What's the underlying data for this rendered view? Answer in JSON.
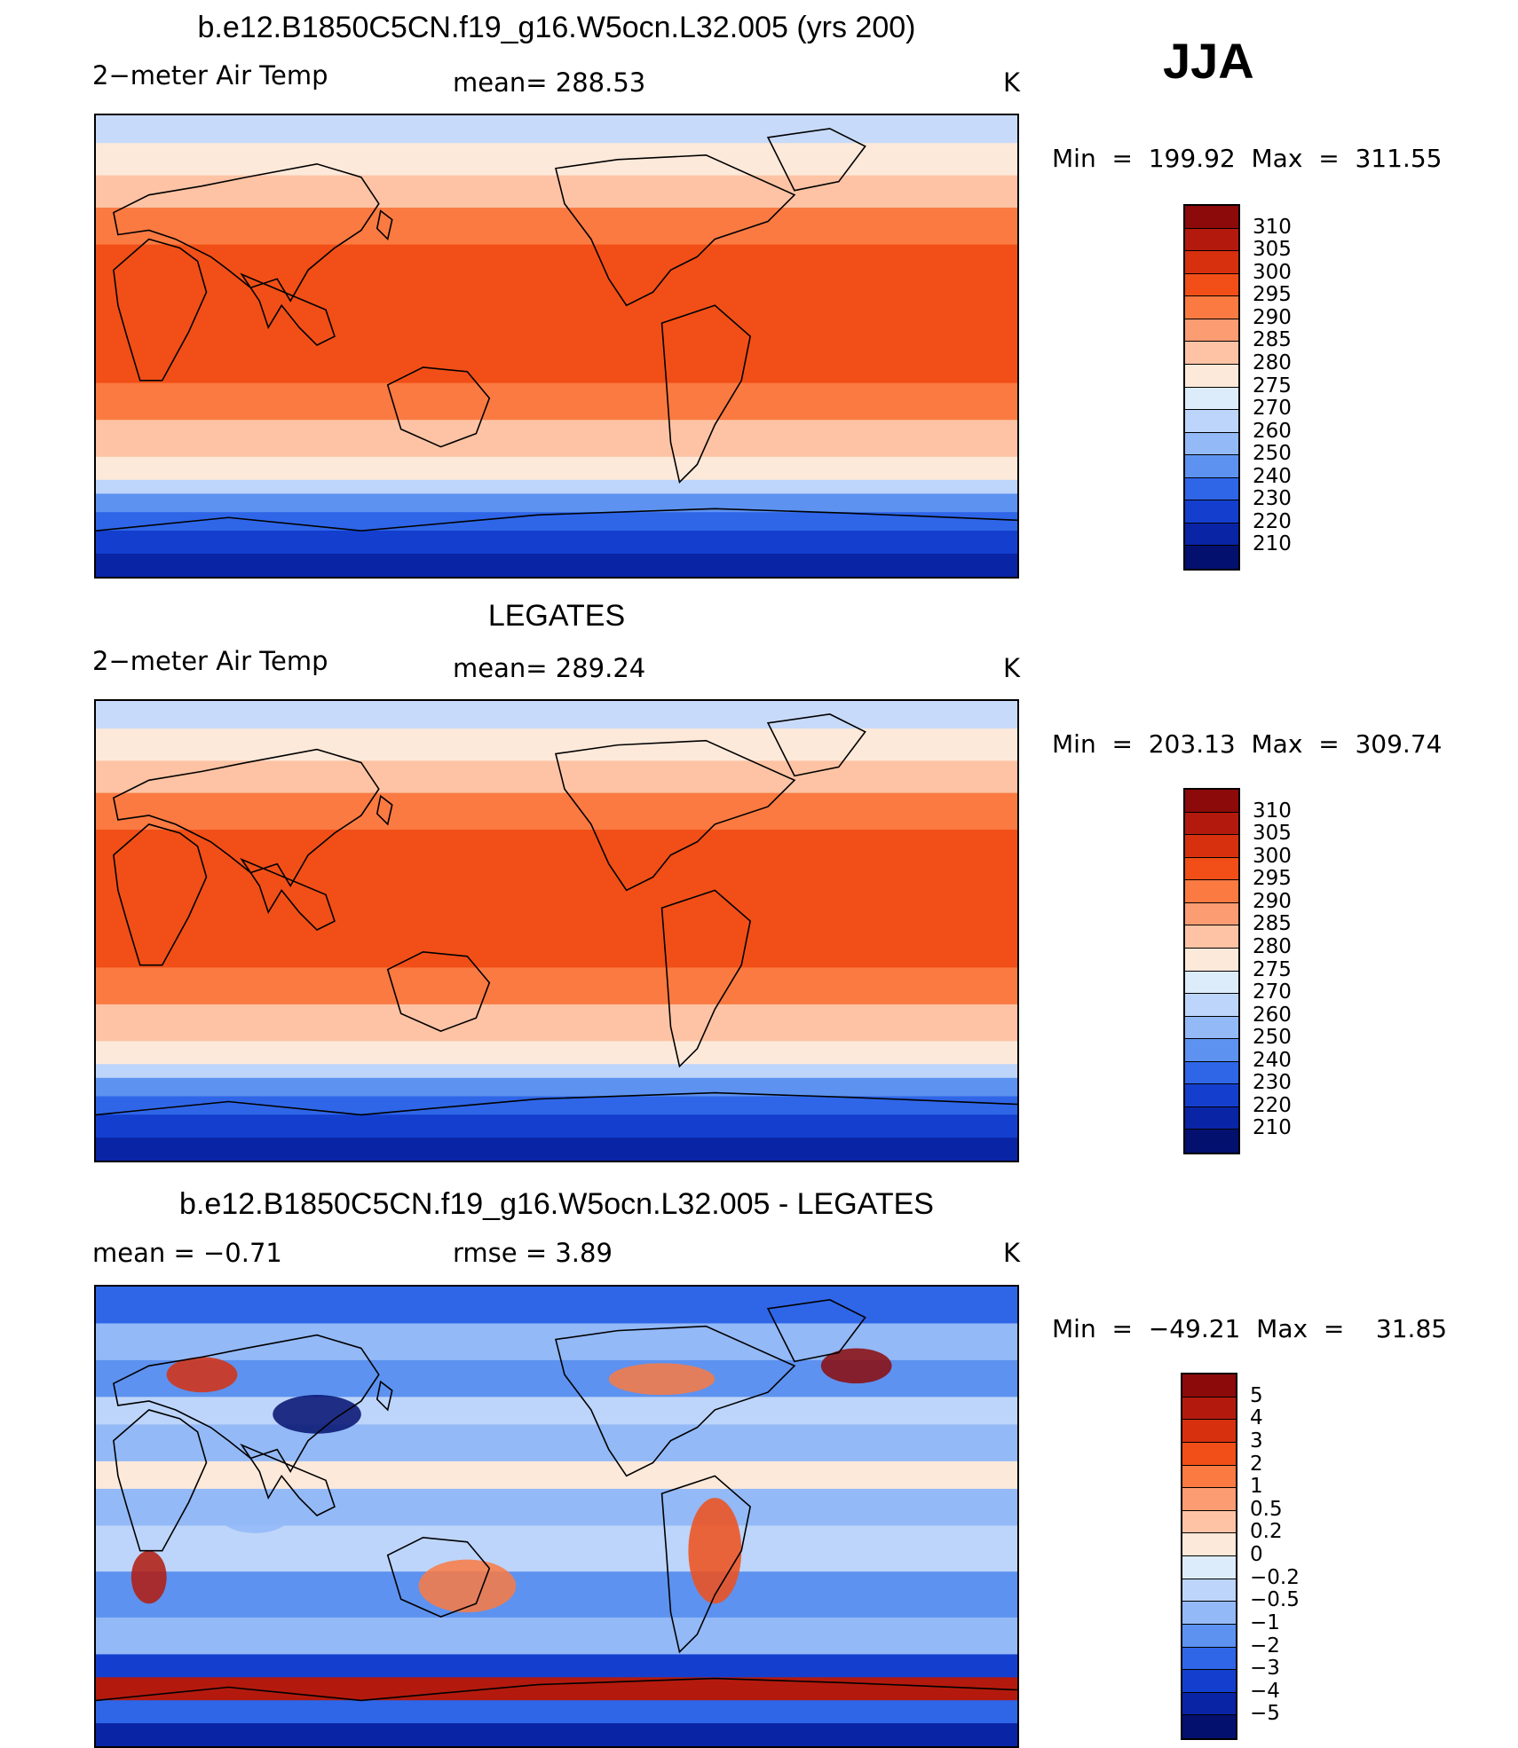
{
  "season": "JJA",
  "panels": [
    {
      "title": "b.e12.B1850C5CN.f19_g16.W5ocn.L32.005 (yrs 200)",
      "left": "2−meter Air Temp",
      "center": "mean= 288.53",
      "right": "K",
      "minmax": "Min  =  199.92  Max  =  311.55",
      "scheme": "temp"
    },
    {
      "title": "LEGATES",
      "left": "2−meter Air Temp",
      "center": "mean= 289.24",
      "right": "K",
      "minmax": "Min  =  203.13  Max  =  309.74",
      "scheme": "temp"
    },
    {
      "title": "b.e12.B1850C5CN.f19_g16.W5ocn.L32.005 - LEGATES",
      "left": "mean =    −0.71",
      "center": "rmse =     3.89",
      "right": "K",
      "minmax": "Min  =  −49.21  Max  =    31.85",
      "scheme": "diff"
    }
  ],
  "colorbars": {
    "temp": {
      "labels": [
        "310",
        "305",
        "300",
        "295",
        "290",
        "285",
        "280",
        "275",
        "270",
        "260",
        "250",
        "240",
        "230",
        "220",
        "210"
      ],
      "colors": [
        "#8c0a0a",
        "#b31a0d",
        "#d6300f",
        "#f14f17",
        "#fa7a42",
        "#fc9c72",
        "#fdc3a4",
        "#fde9da",
        "#ddecfb",
        "#bdd5fa",
        "#93b9f7",
        "#5d92f0",
        "#2f66e8",
        "#143fce",
        "#0a24a6",
        "#04106e"
      ]
    },
    "diff": {
      "labels": [
        "5",
        "4",
        "3",
        "2",
        "1",
        "0.5",
        "0.2",
        "0",
        "−0.2",
        "−0.5",
        "−1",
        "−2",
        "−3",
        "−4",
        "−5"
      ],
      "colors": [
        "#8c0a0a",
        "#b31a0d",
        "#d6300f",
        "#f14f17",
        "#fa7a42",
        "#fc9c72",
        "#fdc3a4",
        "#fde9da",
        "#ddecfb",
        "#bdd5fa",
        "#93b9f7",
        "#5d92f0",
        "#2f66e8",
        "#143fce",
        "#0a24a6",
        "#04106e"
      ]
    }
  }
}
